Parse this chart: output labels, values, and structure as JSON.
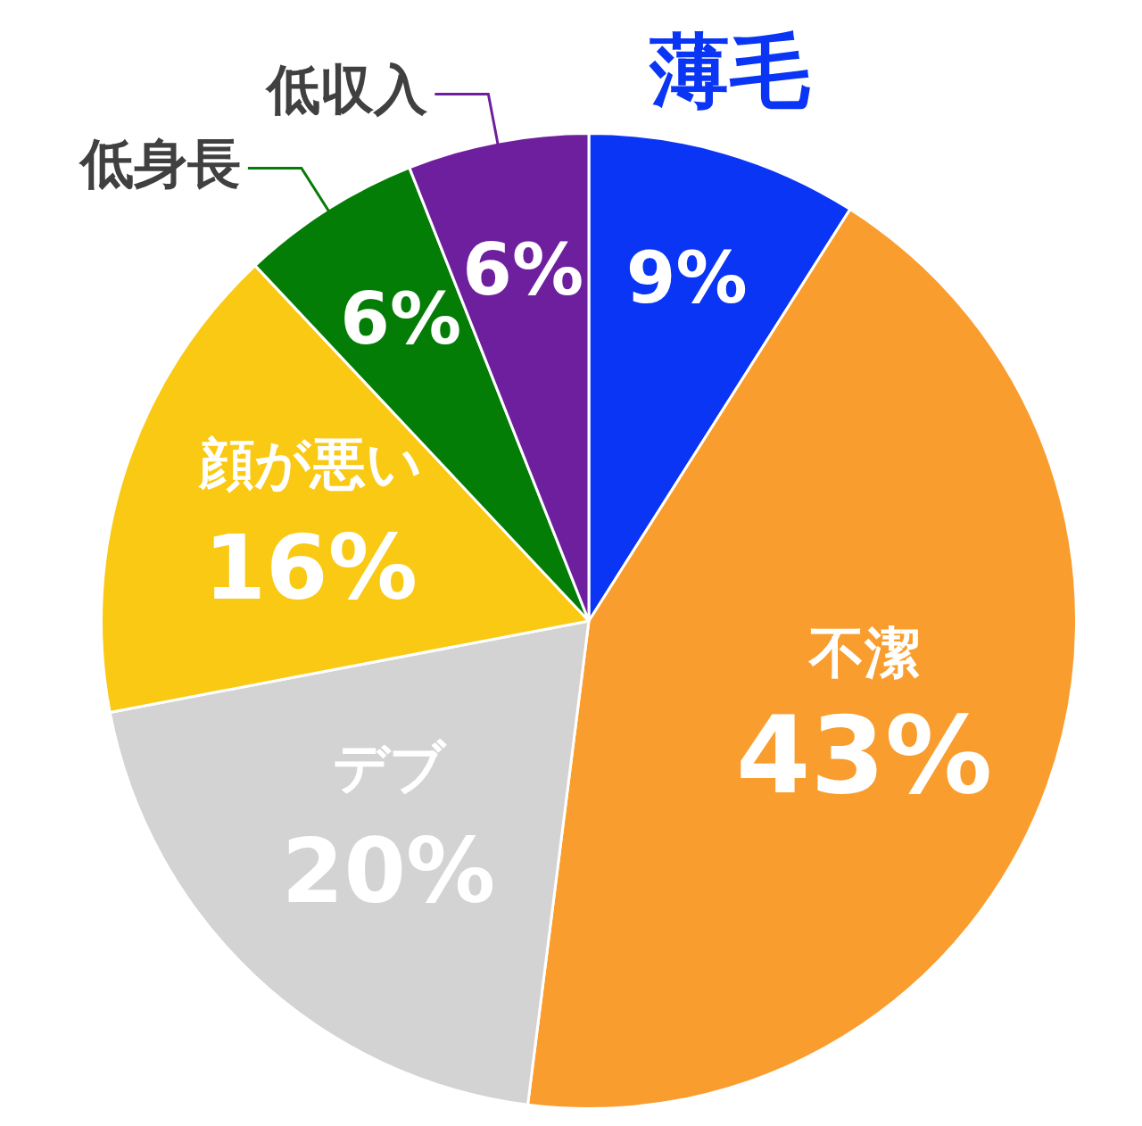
{
  "chart_data": {
    "type": "pie",
    "categories": [
      "薄毛",
      "不潔",
      "デブ",
      "顔が悪い",
      "低身長",
      "低収入"
    ],
    "values": [
      9,
      43,
      20,
      16,
      6,
      6
    ],
    "value_labels": [
      "9%",
      "43%",
      "20%",
      "16%",
      "6%",
      "6%"
    ],
    "colors": [
      "#0a35f5",
      "#f99d2e",
      "#d3d3d3",
      "#f9c913",
      "#037d06",
      "#6e1f9e"
    ],
    "legend": false
  }
}
